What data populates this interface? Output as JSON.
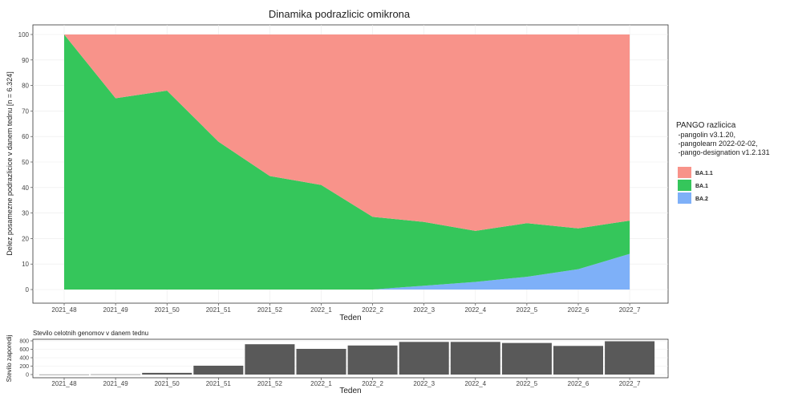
{
  "chart_data": [
    {
      "type": "area",
      "stacked": true,
      "title": "Dinamika podrazlicic omikrona",
      "xlabel": "Teden",
      "ylabel": "Delez posamezne podrazlicice v danem tednu [n = 6.324]",
      "ylim": [
        0,
        100
      ],
      "yticks": [
        0,
        10,
        20,
        30,
        40,
        50,
        60,
        70,
        80,
        90,
        100
      ],
      "categories": [
        "2021_48",
        "2021_49",
        "2021_50",
        "2021_51",
        "2021_52",
        "2022_1",
        "2022_2",
        "2022_3",
        "2022_4",
        "2022_5",
        "2022_6",
        "2022_7"
      ],
      "legend": {
        "title": "PANGO razlicica",
        "subtitle_lines": [
          " -pangolin v3.1.20,",
          " -pangolearn 2022-02-02,",
          " -pango-designation v1.2.131"
        ],
        "position": "right"
      },
      "stack_order": [
        "BA.2",
        "BA.1",
        "BA.1.1"
      ],
      "series": [
        {
          "name": "BA.1.1",
          "color": "#F8938A",
          "values": [
            0,
            25,
            22,
            42,
            55.5,
            59,
            71.5,
            73.5,
            77,
            74,
            76,
            73
          ]
        },
        {
          "name": "BA.1",
          "color": "#35C65B",
          "values": [
            100,
            75,
            78,
            58,
            44.5,
            41,
            28.5,
            25,
            20,
            21,
            16,
            13
          ]
        },
        {
          "name": "BA.2",
          "color": "#7EB0F8",
          "values": [
            0,
            0,
            0,
            0,
            0,
            0,
            0,
            1.5,
            3,
            5,
            8,
            14
          ]
        }
      ],
      "grid": true
    },
    {
      "type": "bar",
      "title": "Stevilo celotnih genomov v danem tednu",
      "xlabel": "Teden",
      "ylabel": "Stevilo zaporedij",
      "ylim": [
        0,
        800
      ],
      "yticks": [
        0,
        200,
        400,
        600,
        800
      ],
      "categories": [
        "2021_48",
        "2021_49",
        "2021_50",
        "2021_51",
        "2021_52",
        "2022_1",
        "2022_2",
        "2022_3",
        "2022_4",
        "2022_5",
        "2022_6",
        "2022_7"
      ],
      "values": [
        2,
        4,
        40,
        210,
        720,
        610,
        690,
        775,
        775,
        750,
        680,
        790
      ],
      "color": "#595959",
      "grid": true
    }
  ]
}
